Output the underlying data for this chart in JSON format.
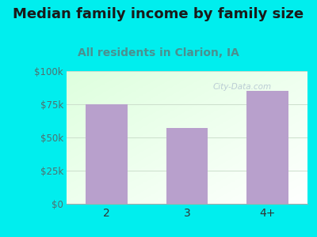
{
  "categories": [
    "2",
    "3",
    "4+"
  ],
  "values": [
    75000,
    57000,
    85000
  ],
  "bar_color": "#b8a0cc",
  "title": "Median family income by family size",
  "subtitle": "All residents in Clarion, IA",
  "title_fontsize": 13.0,
  "subtitle_fontsize": 10.0,
  "subtitle_color": "#4a9090",
  "title_color": "#1a1a1a",
  "background_color": "#00eeee",
  "plot_bg_color_top_left": "#e8f8e8",
  "plot_bg_color_bottom_right": "#f8fff8",
  "ylim": [
    0,
    100000
  ],
  "yticks": [
    0,
    25000,
    50000,
    75000,
    100000
  ],
  "ytick_labels": [
    "$0",
    "$25k",
    "$50k",
    "$75k",
    "$100k"
  ],
  "tick_label_color": "#507070",
  "xtick_label_color": "#333333",
  "watermark": "City-Data.com",
  "watermark_color": "#aabbcc",
  "grid_color": "#ccddcc"
}
